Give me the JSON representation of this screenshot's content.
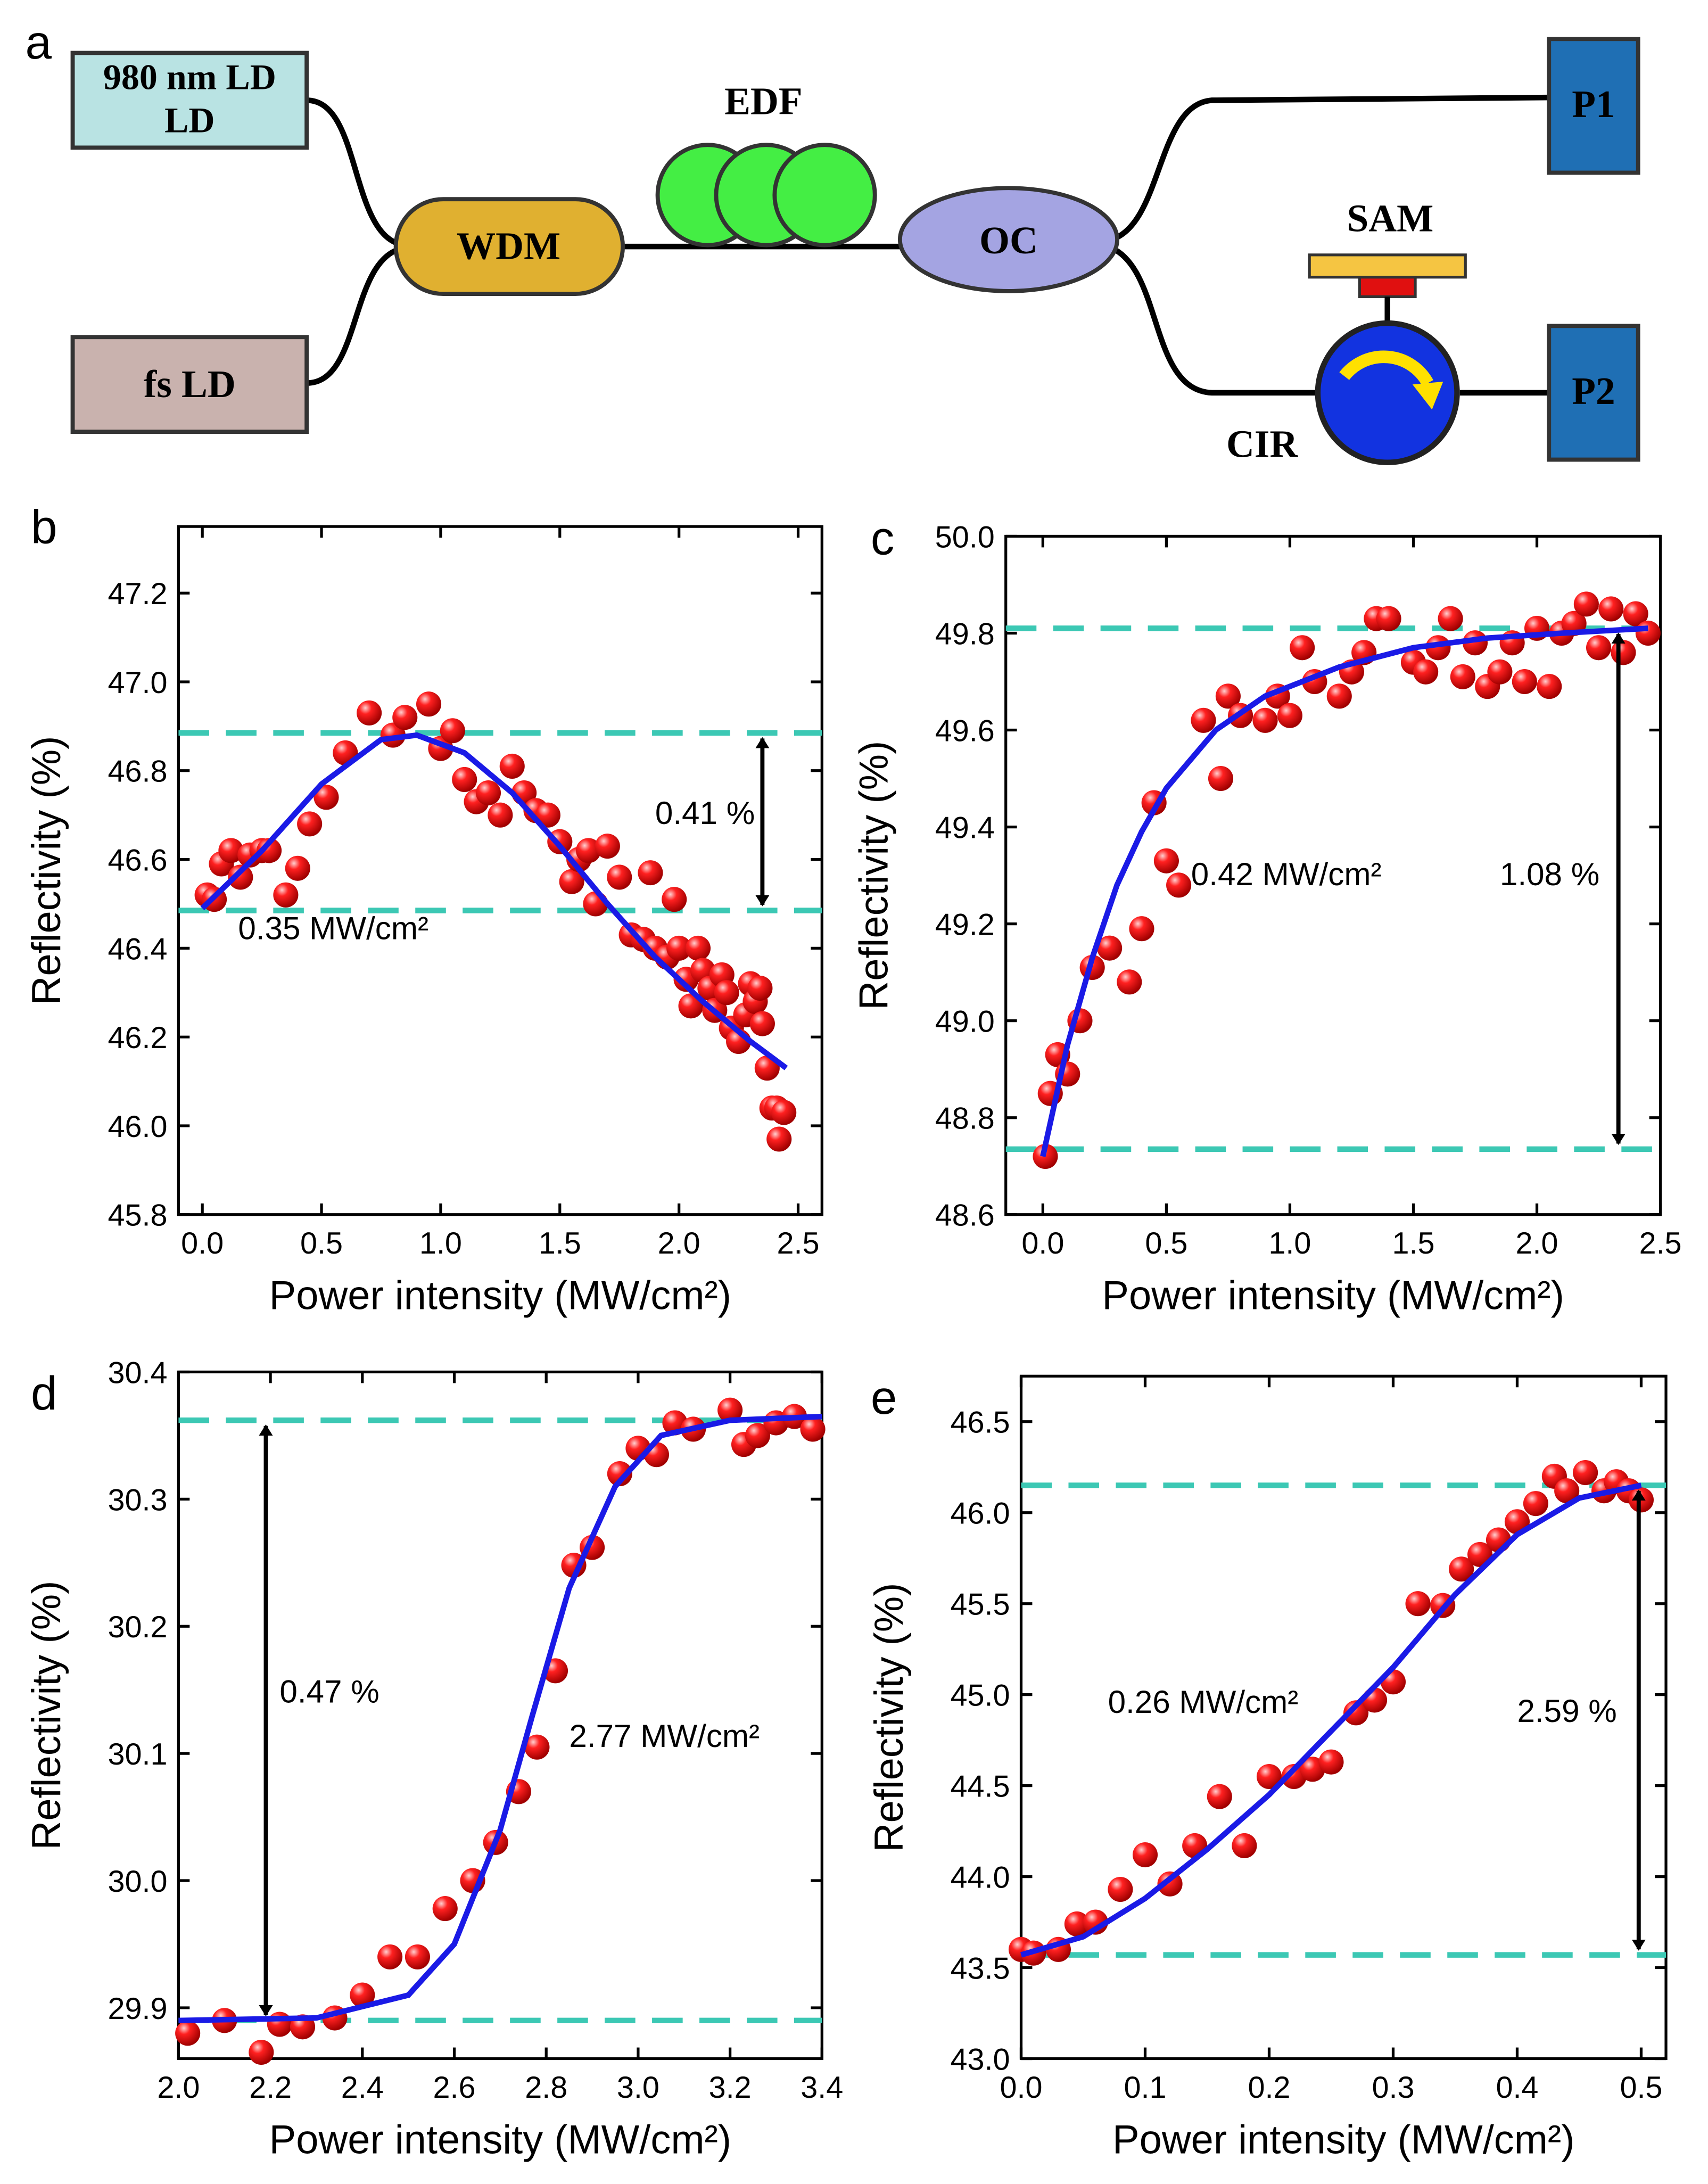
{
  "panel_labels": [
    "a",
    "b",
    "c",
    "d",
    "e"
  ],
  "diagram": {
    "ld980": "980 nm LD",
    "fsld": "fs LD",
    "wdm": "WDM",
    "edf": "EDF",
    "oc": "OC",
    "p1": "P1",
    "p2": "P2",
    "sam": "SAM",
    "cir": "CIR",
    "colors": {
      "ld980": "#b9e3e3",
      "fsld": "#c9b2ae",
      "wdm": "#e0b030",
      "edf": "#44ee44",
      "oc": "#a4a4e2",
      "port": "#1f6fb4",
      "sam": "#f5c542",
      "cir": "#1233e0"
    }
  },
  "chart_data": [
    {
      "type": "scatter",
      "panel": "b",
      "xlabel": "Power intensity (MW/cm²)",
      "ylabel": "Reflectivity (%)",
      "xlim": [
        -0.1,
        2.6
      ],
      "ylim": [
        45.8,
        47.35
      ],
      "xticks": [
        "0.0",
        "0.5",
        "1.0",
        "1.5",
        "2.0",
        "2.5"
      ],
      "yticks": [
        "45.8",
        "46.0",
        "46.2",
        "46.4",
        "46.6",
        "46.8",
        "47.0",
        "47.2"
      ],
      "points": [
        [
          0.02,
          46.52
        ],
        [
          0.05,
          46.51
        ],
        [
          0.08,
          46.59
        ],
        [
          0.12,
          46.62
        ],
        [
          0.16,
          46.56
        ],
        [
          0.2,
          46.61
        ],
        [
          0.25,
          46.62
        ],
        [
          0.28,
          46.62
        ],
        [
          0.35,
          46.52
        ],
        [
          0.4,
          46.58
        ],
        [
          0.45,
          46.68
        ],
        [
          0.52,
          46.74
        ],
        [
          0.6,
          46.84
        ],
        [
          0.7,
          46.93
        ],
        [
          0.8,
          46.88
        ],
        [
          0.85,
          46.92
        ],
        [
          0.95,
          46.95
        ],
        [
          1.0,
          46.85
        ],
        [
          1.05,
          46.89
        ],
        [
          1.1,
          46.78
        ],
        [
          1.15,
          46.73
        ],
        [
          1.2,
          46.75
        ],
        [
          1.25,
          46.7
        ],
        [
          1.3,
          46.81
        ],
        [
          1.35,
          46.75
        ],
        [
          1.4,
          46.71
        ],
        [
          1.45,
          46.7
        ],
        [
          1.5,
          46.64
        ],
        [
          1.55,
          46.55
        ],
        [
          1.58,
          46.6
        ],
        [
          1.62,
          46.62
        ],
        [
          1.65,
          46.5
        ],
        [
          1.7,
          46.63
        ],
        [
          1.75,
          46.56
        ],
        [
          1.8,
          46.43
        ],
        [
          1.85,
          46.42
        ],
        [
          1.88,
          46.57
        ],
        [
          1.9,
          46.4
        ],
        [
          1.95,
          46.38
        ],
        [
          1.98,
          46.51
        ],
        [
          2.0,
          46.4
        ],
        [
          2.03,
          46.33
        ],
        [
          2.05,
          46.27
        ],
        [
          2.08,
          46.4
        ],
        [
          2.1,
          46.35
        ],
        [
          2.13,
          46.31
        ],
        [
          2.15,
          46.26
        ],
        [
          2.18,
          46.34
        ],
        [
          2.2,
          46.3
        ],
        [
          2.22,
          46.22
        ],
        [
          2.25,
          46.19
        ],
        [
          2.28,
          46.25
        ],
        [
          2.3,
          46.32
        ],
        [
          2.32,
          46.28
        ],
        [
          2.34,
          46.31
        ],
        [
          2.35,
          46.23
        ],
        [
          2.37,
          46.13
        ],
        [
          2.39,
          46.04
        ],
        [
          2.41,
          46.04
        ],
        [
          2.42,
          45.97
        ],
        [
          2.44,
          46.03
        ]
      ],
      "fit": [
        [
          0.0,
          46.49
        ],
        [
          0.25,
          46.62
        ],
        [
          0.5,
          46.77
        ],
        [
          0.75,
          46.87
        ],
        [
          0.9,
          46.88
        ],
        [
          1.1,
          46.84
        ],
        [
          1.3,
          46.75
        ],
        [
          1.5,
          46.63
        ],
        [
          1.7,
          46.5
        ],
        [
          1.9,
          46.38
        ],
        [
          2.1,
          46.28
        ],
        [
          2.3,
          46.19
        ],
        [
          2.45,
          46.13
        ]
      ],
      "hlines": [
        46.885,
        46.485
      ],
      "arrow_x": 2.35,
      "annotations": [
        {
          "text": "0.41 %",
          "x": 1.9,
          "y": 46.68
        },
        {
          "text": "0.35 MW/cm²",
          "x": 0.15,
          "y": 46.42
        }
      ]
    },
    {
      "type": "scatter",
      "panel": "c",
      "xlabel": "Power intensity (MW/cm²)",
      "ylabel": "Reflectivity (%)",
      "xlim": [
        -0.15,
        2.5
      ],
      "ylim": [
        48.6,
        50.0
      ],
      "xticks": [
        "0.0",
        "0.5",
        "1.0",
        "1.5",
        "2.0",
        "2.5"
      ],
      "yticks": [
        "48.6",
        "48.8",
        "49.0",
        "49.2",
        "49.4",
        "49.6",
        "49.8",
        "50.0"
      ],
      "points": [
        [
          0.01,
          48.72
        ],
        [
          0.03,
          48.85
        ],
        [
          0.06,
          48.93
        ],
        [
          0.1,
          48.89
        ],
        [
          0.15,
          49.0
        ],
        [
          0.2,
          49.11
        ],
        [
          0.27,
          49.15
        ],
        [
          0.35,
          49.08
        ],
        [
          0.4,
          49.19
        ],
        [
          0.45,
          49.45
        ],
        [
          0.5,
          49.33
        ],
        [
          0.55,
          49.28
        ],
        [
          0.65,
          49.62
        ],
        [
          0.72,
          49.5
        ],
        [
          0.75,
          49.67
        ],
        [
          0.8,
          49.63
        ],
        [
          0.9,
          49.62
        ],
        [
          0.95,
          49.67
        ],
        [
          1.0,
          49.63
        ],
        [
          1.05,
          49.77
        ],
        [
          1.1,
          49.7
        ],
        [
          1.2,
          49.67
        ],
        [
          1.25,
          49.72
        ],
        [
          1.3,
          49.76
        ],
        [
          1.35,
          49.83
        ],
        [
          1.4,
          49.83
        ],
        [
          1.5,
          49.74
        ],
        [
          1.55,
          49.72
        ],
        [
          1.6,
          49.77
        ],
        [
          1.65,
          49.83
        ],
        [
          1.7,
          49.71
        ],
        [
          1.75,
          49.78
        ],
        [
          1.8,
          49.69
        ],
        [
          1.85,
          49.72
        ],
        [
          1.9,
          49.78
        ],
        [
          1.95,
          49.7
        ],
        [
          2.0,
          49.81
        ],
        [
          2.05,
          49.69
        ],
        [
          2.1,
          49.8
        ],
        [
          2.15,
          49.82
        ],
        [
          2.2,
          49.86
        ],
        [
          2.25,
          49.77
        ],
        [
          2.3,
          49.85
        ],
        [
          2.35,
          49.76
        ],
        [
          2.4,
          49.84
        ],
        [
          2.45,
          49.8
        ]
      ],
      "fit": [
        [
          0.0,
          48.72
        ],
        [
          0.1,
          48.95
        ],
        [
          0.2,
          49.13
        ],
        [
          0.3,
          49.28
        ],
        [
          0.4,
          49.39
        ],
        [
          0.5,
          49.48
        ],
        [
          0.7,
          49.6
        ],
        [
          0.9,
          49.67
        ],
        [
          1.2,
          49.73
        ],
        [
          1.5,
          49.77
        ],
        [
          1.8,
          49.79
        ],
        [
          2.1,
          49.8
        ],
        [
          2.45,
          49.81
        ]
      ],
      "hlines": [
        49.81,
        48.735
      ],
      "arrow_x": 2.33,
      "annotations": [
        {
          "text": "0.42 MW/cm²",
          "x": 0.6,
          "y": 49.28
        },
        {
          "text": "1.08 %",
          "x": 1.85,
          "y": 49.28
        }
      ]
    },
    {
      "type": "scatter",
      "panel": "d",
      "xlabel": "Power intensity (MW/cm²)",
      "ylabel": "Reflectivity (%)",
      "xlim": [
        2.0,
        3.4
      ],
      "ylim": [
        29.86,
        30.4
      ],
      "xticks": [
        "2.0",
        "2.2",
        "2.4",
        "2.6",
        "2.8",
        "3.0",
        "3.2",
        "3.4"
      ],
      "yticks": [
        "29.9",
        "30.0",
        "30.1",
        "30.2",
        "30.3",
        "30.4"
      ],
      "points": [
        [
          2.02,
          29.88
        ],
        [
          2.1,
          29.89
        ],
        [
          2.18,
          29.865
        ],
        [
          2.22,
          29.887
        ],
        [
          2.27,
          29.885
        ],
        [
          2.34,
          29.892
        ],
        [
          2.4,
          29.91
        ],
        [
          2.46,
          29.94
        ],
        [
          2.52,
          29.94
        ],
        [
          2.58,
          29.978
        ],
        [
          2.64,
          30.0
        ],
        [
          2.69,
          30.03
        ],
        [
          2.74,
          30.07
        ],
        [
          2.78,
          30.105
        ],
        [
          2.82,
          30.165
        ],
        [
          2.86,
          30.248
        ],
        [
          2.9,
          30.262
        ],
        [
          2.96,
          30.32
        ],
        [
          3.0,
          30.34
        ],
        [
          3.04,
          30.335
        ],
        [
          3.08,
          30.36
        ],
        [
          3.12,
          30.355
        ],
        [
          3.2,
          30.37
        ],
        [
          3.23,
          30.343
        ],
        [
          3.26,
          30.35
        ],
        [
          3.3,
          30.36
        ],
        [
          3.34,
          30.365
        ],
        [
          3.38,
          30.355
        ]
      ],
      "fit": [
        [
          2.0,
          29.89
        ],
        [
          2.3,
          29.892
        ],
        [
          2.5,
          29.91
        ],
        [
          2.6,
          29.95
        ],
        [
          2.7,
          30.04
        ],
        [
          2.77,
          30.13
        ],
        [
          2.85,
          30.23
        ],
        [
          2.95,
          30.31
        ],
        [
          3.05,
          30.35
        ],
        [
          3.2,
          30.362
        ],
        [
          3.4,
          30.365
        ]
      ],
      "hlines": [
        30.362,
        29.89
      ],
      "arrow_x": 2.19,
      "annotations": [
        {
          "text": "0.47 %",
          "x": 2.22,
          "y": 30.14
        },
        {
          "text": "2.77 MW/cm²",
          "x": 2.85,
          "y": 30.105
        }
      ]
    },
    {
      "type": "scatter",
      "panel": "e",
      "xlabel": "Power intensity (MW/cm²)",
      "ylabel": "Reflectivity (%)",
      "xlim": [
        0.0,
        0.52
      ],
      "ylim": [
        43.0,
        46.75
      ],
      "xticks": [
        "0.0",
        "0.1",
        "0.2",
        "0.3",
        "0.4",
        "0.5"
      ],
      "yticks": [
        "43.0",
        "43.5",
        "44.0",
        "44.5",
        "45.0",
        "45.5",
        "46.0",
        "46.5"
      ],
      "points": [
        [
          0.0,
          43.6
        ],
        [
          0.01,
          43.58
        ],
        [
          0.03,
          43.6
        ],
        [
          0.045,
          43.74
        ],
        [
          0.06,
          43.75
        ],
        [
          0.08,
          43.93
        ],
        [
          0.1,
          44.12
        ],
        [
          0.12,
          43.96
        ],
        [
          0.14,
          44.17
        ],
        [
          0.16,
          44.44
        ],
        [
          0.18,
          44.17
        ],
        [
          0.2,
          44.55
        ],
        [
          0.22,
          44.55
        ],
        [
          0.235,
          44.59
        ],
        [
          0.25,
          44.63
        ],
        [
          0.27,
          44.9
        ],
        [
          0.285,
          44.97
        ],
        [
          0.3,
          45.07
        ],
        [
          0.32,
          45.5
        ],
        [
          0.34,
          45.49
        ],
        [
          0.355,
          45.69
        ],
        [
          0.37,
          45.77
        ],
        [
          0.385,
          45.85
        ],
        [
          0.4,
          45.95
        ],
        [
          0.415,
          46.05
        ],
        [
          0.43,
          46.2
        ],
        [
          0.44,
          46.12
        ],
        [
          0.455,
          46.22
        ],
        [
          0.47,
          46.12
        ],
        [
          0.48,
          46.17
        ],
        [
          0.49,
          46.12
        ],
        [
          0.5,
          46.07
        ]
      ],
      "fit": [
        [
          0.0,
          43.57
        ],
        [
          0.05,
          43.67
        ],
        [
          0.1,
          43.88
        ],
        [
          0.15,
          44.15
        ],
        [
          0.2,
          44.45
        ],
        [
          0.25,
          44.8
        ],
        [
          0.3,
          45.15
        ],
        [
          0.35,
          45.55
        ],
        [
          0.4,
          45.88
        ],
        [
          0.45,
          46.08
        ],
        [
          0.5,
          46.15
        ]
      ],
      "hlines": [
        46.15,
        43.57
      ],
      "arrow_x": 0.498,
      "annotations": [
        {
          "text": "0.26 MW/cm²",
          "x": 0.07,
          "y": 44.9
        },
        {
          "text": "2.59 %",
          "x": 0.4,
          "y": 44.85
        }
      ]
    }
  ]
}
